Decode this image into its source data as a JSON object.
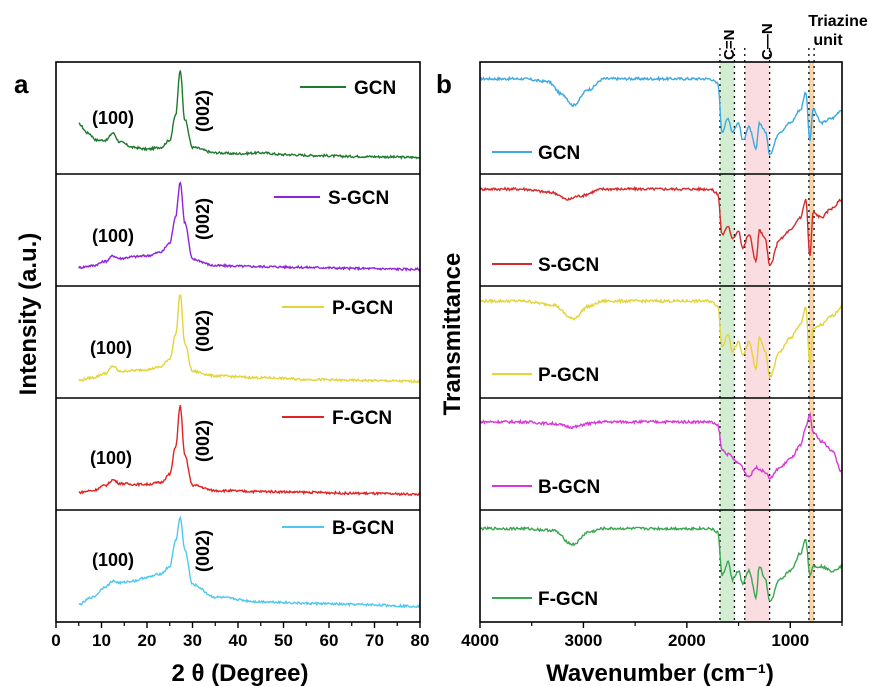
{
  "chart_data": [
    {
      "type": "line",
      "panel_label": "a",
      "xlabel": "2 θ (Degree)",
      "ylabel": "Intensity (a.u.)",
      "xlim": [
        0,
        80
      ],
      "x_ticks": [
        "0",
        "10",
        "20",
        "30",
        "40",
        "50",
        "60",
        "70",
        "80"
      ],
      "stacked": true,
      "peak_labels": [
        "(100)",
        "(002)"
      ],
      "peaks_deg": [
        13,
        27.3
      ],
      "series": [
        {
          "name": "GCN",
          "color": "#1e7a2e",
          "points": [
            [
              5,
              0.4
            ],
            [
              7,
              0.3
            ],
            [
              9,
              0.22
            ],
            [
              11,
              0.22
            ],
            [
              12.5,
              0.3
            ],
            [
              14,
              0.2
            ],
            [
              17,
              0.14
            ],
            [
              20,
              0.12
            ],
            [
              23,
              0.14
            ],
            [
              25,
              0.22
            ],
            [
              26.3,
              0.5
            ],
            [
              27.3,
              1.0
            ],
            [
              28.3,
              0.45
            ],
            [
              30,
              0.14
            ],
            [
              35,
              0.08
            ],
            [
              40,
              0.07
            ],
            [
              45,
              0.08
            ],
            [
              50,
              0.06
            ],
            [
              57,
              0.05
            ],
            [
              65,
              0.04
            ],
            [
              80,
              0.03
            ]
          ]
        },
        {
          "name": "S-GCN",
          "color": "#8e24d8",
          "points": [
            [
              5,
              0.05
            ],
            [
              8,
              0.07
            ],
            [
              11,
              0.12
            ],
            [
              12.5,
              0.18
            ],
            [
              14,
              0.15
            ],
            [
              17,
              0.17
            ],
            [
              20,
              0.18
            ],
            [
              23,
              0.22
            ],
            [
              25,
              0.32
            ],
            [
              26.3,
              0.62
            ],
            [
              27.3,
              1.0
            ],
            [
              28.3,
              0.55
            ],
            [
              30,
              0.14
            ],
            [
              35,
              0.07
            ],
            [
              45,
              0.06
            ],
            [
              57,
              0.05
            ],
            [
              65,
              0.04
            ],
            [
              80,
              0.03
            ]
          ]
        },
        {
          "name": "P-GCN",
          "color": "#e3d43a",
          "points": [
            [
              5,
              0.04
            ],
            [
              8,
              0.07
            ],
            [
              11,
              0.12
            ],
            [
              12.5,
              0.2
            ],
            [
              14,
              0.14
            ],
            [
              17,
              0.15
            ],
            [
              20,
              0.16
            ],
            [
              23,
              0.19
            ],
            [
              25,
              0.28
            ],
            [
              26.3,
              0.55
            ],
            [
              27.3,
              1.0
            ],
            [
              28.3,
              0.45
            ],
            [
              30,
              0.14
            ],
            [
              35,
              0.09
            ],
            [
              45,
              0.07
            ],
            [
              57,
              0.05
            ],
            [
              65,
              0.04
            ],
            [
              80,
              0.03
            ]
          ]
        },
        {
          "name": "F-GCN",
          "color": "#e02424",
          "points": [
            [
              5,
              0.04
            ],
            [
              8,
              0.06
            ],
            [
              11,
              0.12
            ],
            [
              12.5,
              0.18
            ],
            [
              14,
              0.14
            ],
            [
              17,
              0.13
            ],
            [
              20,
              0.13
            ],
            [
              23,
              0.15
            ],
            [
              25,
              0.24
            ],
            [
              26.3,
              0.55
            ],
            [
              27.3,
              1.0
            ],
            [
              28.3,
              0.45
            ],
            [
              30,
              0.12
            ],
            [
              35,
              0.06
            ],
            [
              45,
              0.05
            ],
            [
              57,
              0.04
            ],
            [
              65,
              0.03
            ],
            [
              80,
              0.02
            ]
          ]
        },
        {
          "name": "B-GCN",
          "color": "#4fc8ee",
          "points": [
            [
              5,
              0.04
            ],
            [
              8,
              0.12
            ],
            [
              11,
              0.24
            ],
            [
              12.5,
              0.3
            ],
            [
              14,
              0.28
            ],
            [
              17,
              0.3
            ],
            [
              20,
              0.34
            ],
            [
              23,
              0.38
            ],
            [
              25,
              0.46
            ],
            [
              26.3,
              0.75
            ],
            [
              27.3,
              1.0
            ],
            [
              28.3,
              0.65
            ],
            [
              30,
              0.26
            ],
            [
              35,
              0.12
            ],
            [
              45,
              0.07
            ],
            [
              57,
              0.05
            ],
            [
              65,
              0.04
            ],
            [
              80,
              0.02
            ]
          ]
        }
      ]
    },
    {
      "type": "line",
      "panel_label": "b",
      "xlabel": "Wavenumber (cm⁻¹)",
      "ylabel": "Transmittance",
      "xlim": [
        4000,
        500
      ],
      "x_ticks": [
        "4000",
        "3000",
        "2000",
        "1000"
      ],
      "stacked": true,
      "band_labels": {
        "cn_double": "C=N",
        "cn_single": "C—N",
        "triazine_1": "Triazine",
        "triazine_2": "unit"
      },
      "bands_cm1": {
        "cn_double": [
          1680,
          1540
        ],
        "cn_single": [
          1440,
          1200
        ],
        "triazine": [
          820,
          770
        ]
      },
      "band_colors": {
        "cn_double": "#9ed89e",
        "cn_single": "#f4b4bc",
        "triazine": "#f0a040"
      },
      "series": [
        {
          "name": "GCN",
          "color": "#3ea9df",
          "points": [
            [
              4000,
              0.9
            ],
            [
              3600,
              0.9
            ],
            [
              3350,
              0.87
            ],
            [
              3200,
              0.72
            ],
            [
              3100,
              0.6
            ],
            [
              2950,
              0.78
            ],
            [
              2800,
              0.9
            ],
            [
              1780,
              0.9
            ],
            [
              1700,
              0.85
            ],
            [
              1660,
              0.3
            ],
            [
              1600,
              0.45
            ],
            [
              1560,
              0.3
            ],
            [
              1500,
              0.4
            ],
            [
              1460,
              0.2
            ],
            [
              1400,
              0.35
            ],
            [
              1330,
              0.1
            ],
            [
              1300,
              0.4
            ],
            [
              1240,
              0.3
            ],
            [
              1200,
              0.05
            ],
            [
              1100,
              0.3
            ],
            [
              1000,
              0.4
            ],
            [
              900,
              0.55
            ],
            [
              850,
              0.75
            ],
            [
              810,
              0.2
            ],
            [
              780,
              0.55
            ],
            [
              700,
              0.4
            ],
            [
              600,
              0.45
            ],
            [
              500,
              0.55
            ]
          ]
        },
        {
          "name": "S-GCN",
          "color": "#d42b2b",
          "points": [
            [
              4000,
              0.92
            ],
            [
              3600,
              0.92
            ],
            [
              3300,
              0.88
            ],
            [
              3150,
              0.8
            ],
            [
              3050,
              0.84
            ],
            [
              2800,
              0.92
            ],
            [
              1780,
              0.92
            ],
            [
              1700,
              0.87
            ],
            [
              1660,
              0.4
            ],
            [
              1600,
              0.5
            ],
            [
              1560,
              0.35
            ],
            [
              1500,
              0.45
            ],
            [
              1460,
              0.25
            ],
            [
              1400,
              0.4
            ],
            [
              1330,
              0.1
            ],
            [
              1300,
              0.45
            ],
            [
              1240,
              0.35
            ],
            [
              1200,
              0.05
            ],
            [
              1100,
              0.35
            ],
            [
              1000,
              0.45
            ],
            [
              900,
              0.6
            ],
            [
              850,
              0.8
            ],
            [
              810,
              0.15
            ],
            [
              780,
              0.65
            ],
            [
              700,
              0.6
            ],
            [
              600,
              0.7
            ],
            [
              500,
              0.8
            ]
          ]
        },
        {
          "name": "P-GCN",
          "color": "#e3d43a",
          "points": [
            [
              4000,
              0.92
            ],
            [
              3600,
              0.92
            ],
            [
              3300,
              0.88
            ],
            [
              3100,
              0.72
            ],
            [
              2950,
              0.86
            ],
            [
              2800,
              0.92
            ],
            [
              1780,
              0.92
            ],
            [
              1700,
              0.87
            ],
            [
              1660,
              0.4
            ],
            [
              1600,
              0.55
            ],
            [
              1560,
              0.35
            ],
            [
              1500,
              0.45
            ],
            [
              1460,
              0.3
            ],
            [
              1400,
              0.45
            ],
            [
              1330,
              0.15
            ],
            [
              1300,
              0.5
            ],
            [
              1240,
              0.35
            ],
            [
              1200,
              0.05
            ],
            [
              1100,
              0.35
            ],
            [
              1000,
              0.5
            ],
            [
              900,
              0.65
            ],
            [
              850,
              0.85
            ],
            [
              810,
              0.2
            ],
            [
              780,
              0.6
            ],
            [
              700,
              0.65
            ],
            [
              600,
              0.75
            ],
            [
              500,
              0.85
            ]
          ]
        },
        {
          "name": "B-GCN",
          "color": "#d838d8",
          "points": [
            [
              4000,
              0.82
            ],
            [
              3600,
              0.82
            ],
            [
              3300,
              0.8
            ],
            [
              3100,
              0.76
            ],
            [
              2950,
              0.8
            ],
            [
              2800,
              0.82
            ],
            [
              1780,
              0.82
            ],
            [
              1700,
              0.78
            ],
            [
              1660,
              0.5
            ],
            [
              1600,
              0.45
            ],
            [
              1500,
              0.35
            ],
            [
              1400,
              0.2
            ],
            [
              1330,
              0.3
            ],
            [
              1240,
              0.25
            ],
            [
              1200,
              0.18
            ],
            [
              1100,
              0.3
            ],
            [
              1000,
              0.4
            ],
            [
              900,
              0.55
            ],
            [
              850,
              0.75
            ],
            [
              810,
              0.9
            ],
            [
              780,
              0.7
            ],
            [
              700,
              0.6
            ],
            [
              600,
              0.5
            ],
            [
              500,
              0.25
            ]
          ]
        },
        {
          "name": "F-GCN",
          "color": "#3aa650",
          "points": [
            [
              4000,
              0.88
            ],
            [
              3600,
              0.88
            ],
            [
              3300,
              0.86
            ],
            [
              3100,
              0.7
            ],
            [
              2950,
              0.84
            ],
            [
              2800,
              0.88
            ],
            [
              1780,
              0.88
            ],
            [
              1700,
              0.84
            ],
            [
              1660,
              0.35
            ],
            [
              1600,
              0.5
            ],
            [
              1560,
              0.3
            ],
            [
              1500,
              0.4
            ],
            [
              1460,
              0.25
            ],
            [
              1400,
              0.4
            ],
            [
              1330,
              0.1
            ],
            [
              1300,
              0.45
            ],
            [
              1240,
              0.3
            ],
            [
              1200,
              0.05
            ],
            [
              1100,
              0.3
            ],
            [
              1000,
              0.4
            ],
            [
              900,
              0.6
            ],
            [
              850,
              0.75
            ],
            [
              810,
              0.35
            ],
            [
              780,
              0.45
            ],
            [
              700,
              0.45
            ],
            [
              600,
              0.4
            ],
            [
              500,
              0.45
            ]
          ]
        }
      ]
    }
  ]
}
